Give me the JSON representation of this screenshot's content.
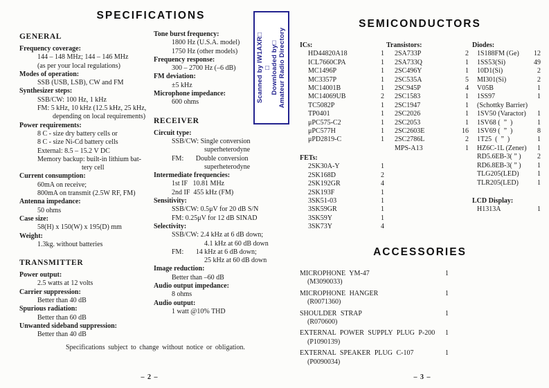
{
  "left_page": {
    "title": "SPECIFICATIONS",
    "page_number": "– 2 –",
    "footnote": "Specifications subject to change without notice or obligation.",
    "col1": [
      {
        "heading": "GENERAL",
        "blocks": [
          {
            "label": "Frequency coverage:",
            "lines": [
              {
                "t": "144 – 148 MHz; 144 – 146 MHz",
                "i": 1
              },
              {
                "t": "(as per your local regulations)",
                "i": 1
              }
            ]
          },
          {
            "label": "Modes of operation:",
            "lines": [
              {
                "t": "SSB (USB, LSB), CW and FM",
                "i": 1
              }
            ]
          },
          {
            "label": "Synthesizer steps:",
            "lines": [
              {
                "t": "SSB/CW: 100 Hz, 1 kHz",
                "i": 1
              },
              {
                "t": "FM: 5 kHz, 10 kHz (12.5 kHz, 25 kHz,",
                "i": 1
              },
              {
                "t": "depending on local requirements)",
                "i": 2
              }
            ]
          },
          {
            "label": "Power requirements:",
            "lines": [
              {
                "t": "8 C - size dry battery cells or",
                "i": 1
              },
              {
                "t": "8 C - size Ni-Cd battery cells",
                "i": 1
              },
              {
                "t": "External: 8.5 – 15.2 V DC",
                "i": 1
              },
              {
                "t": "Memory backup: built-in lithium bat-",
                "i": 1
              },
              {
                "t": "tery cell",
                "i": 3
              }
            ]
          },
          {
            "label": "Current consumption:",
            "lines": [
              {
                "t": "60mA on receive;",
                "i": 1
              },
              {
                "t": "800mA on transmit (2.5W RF, FM)",
                "i": 1
              }
            ]
          },
          {
            "label": "Antenna impedance:",
            "lines": [
              {
                "t": "50 ohms",
                "i": 1
              }
            ]
          },
          {
            "label": "Case size:",
            "lines": [
              {
                "t": "58(H) x 150(W) x 195(D) mm",
                "i": 1
              }
            ]
          },
          {
            "label": "Weight:",
            "lines": [
              {
                "t": "1.3kg. without batteries",
                "i": 1
              }
            ]
          }
        ]
      },
      {
        "heading": "TRANSMITTER",
        "blocks": [
          {
            "label": "Power output:",
            "lines": [
              {
                "t": "2.5 watts at 12 volts",
                "i": 1
              }
            ]
          },
          {
            "label": "Carrier suppression:",
            "lines": [
              {
                "t": "Better than 40 dB",
                "i": 1
              }
            ]
          },
          {
            "label": "Spurious radiation:",
            "lines": [
              {
                "t": "Better than 60 dB",
                "i": 1
              }
            ]
          },
          {
            "label": "Unwanted sideband suppression:",
            "lines": [
              {
                "t": "Better than 40 dB",
                "i": 1
              }
            ]
          }
        ]
      }
    ],
    "col2": [
      {
        "heading": "",
        "blocks": [
          {
            "label": "Tone burst frequency:",
            "lines": [
              {
                "t": "1800 Hz (U.S.A. model)",
                "i": 1
              },
              {
                "t": "1750 Hz (other models)",
                "i": 1
              }
            ]
          },
          {
            "label": "Frequency response:",
            "lines": [
              {
                "t": "300 – 2700 Hz (–6 dB)",
                "i": 1
              }
            ]
          },
          {
            "label": "FM deviation:",
            "lines": [
              {
                "t": "±5 kHz",
                "i": 1
              }
            ]
          },
          {
            "label": "Microphone impedance:",
            "lines": [
              {
                "t": "600 ohms",
                "i": 1
              }
            ]
          }
        ]
      },
      {
        "heading": "RECEIVER",
        "blocks": [
          {
            "label": "Circuit type:",
            "lines": [
              {
                "t": "SSB/CW: Single conversion",
                "i": 1
              },
              {
                "t": "superheterodyne",
                "i": 4
              },
              {
                "t": "FM:       Double conversion",
                "i": 1
              },
              {
                "t": "superheterodyne",
                "i": 4
              }
            ]
          },
          {
            "label": "Intermediate frequencies:",
            "lines": [
              {
                "t": "1st IF   10.81 MHz",
                "i": 1
              },
              {
                "t": "2nd IF  455 kHz (FM)",
                "i": 1
              }
            ]
          },
          {
            "label": "Sensitivity:",
            "lines": [
              {
                "t": "SSB/CW: 0.5μV for 20 dB S/N",
                "i": 1
              },
              {
                "t": "FM: 0.25μV for 12 dB SINAD",
                "i": 1
              }
            ]
          },
          {
            "label": "Selectivity:",
            "lines": [
              {
                "t": "SSB/CW: 2.4 kHz at 6 dB down;",
                "i": 1
              },
              {
                "t": "4.1 kHz at 60 dB down",
                "i": 4
              },
              {
                "t": "FM:       14 kHz at 6 dB down;",
                "i": 1
              },
              {
                "t": "25 kHz at 60 dB down",
                "i": 4
              }
            ]
          },
          {
            "label": "Image reduction:",
            "lines": [
              {
                "t": "Better than –60 dB",
                "i": 1
              }
            ]
          },
          {
            "label": "Audio output impedance:",
            "lines": [
              {
                "t": "8 ohms",
                "i": 1
              }
            ]
          },
          {
            "label": "Audio output:",
            "lines": [
              {
                "t": "1 watt @10% THD",
                "i": 1
              }
            ]
          }
        ]
      }
    ]
  },
  "stamp": {
    "border_color": "#23238f",
    "lines": [
      "Scanned by IW1AXR□",
      "□",
      "Downloaded by□",
      "Amateur Radio Directory"
    ]
  },
  "right_page": {
    "title": "SEMICONDUCTORS",
    "accessories_title": "ACCESSORIES",
    "page_number": "– 3 –",
    "col_ics": [
      {
        "heading": "ICs:",
        "parts": [
          {
            "n": "HD44820A18",
            "q": "1"
          },
          {
            "n": "ICL7660CPA",
            "q": "1"
          },
          {
            "n": "MC1496P",
            "q": "1"
          },
          {
            "n": "MC3357P",
            "q": "1"
          },
          {
            "n": "MC14001B",
            "q": "1"
          },
          {
            "n": "MC14069UB",
            "q": "2"
          },
          {
            "n": "TC5082P",
            "q": "1"
          },
          {
            "n": "TP0401",
            "q": "1"
          },
          {
            "n": "μPC575-C2",
            "q": "1"
          },
          {
            "n": "μPC577H",
            "q": "1"
          },
          {
            "n": "μPD2819-C",
            "q": "1"
          }
        ]
      },
      {
        "heading": "FETs:",
        "parts": [
          {
            "n": "2SK30A-Y",
            "q": "1"
          },
          {
            "n": "2SK168D",
            "q": "2"
          },
          {
            "n": "2SK192GR",
            "q": "4"
          },
          {
            "n": "2SK193F",
            "q": "1"
          },
          {
            "n": "3SK51-03",
            "q": "1"
          },
          {
            "n": "3SK59GR",
            "q": "1"
          },
          {
            "n": "3SK59Y",
            "q": "1"
          },
          {
            "n": "3SK73Y",
            "q": "4"
          }
        ]
      }
    ],
    "col_transistors": [
      {
        "heading": "Transistors:",
        "parts": [
          {
            "n": "2SA733P",
            "q": "2"
          },
          {
            "n": "2SA733Q",
            "q": "1"
          },
          {
            "n": "2SC496Y",
            "q": "1"
          },
          {
            "n": "2SC535A",
            "q": "5"
          },
          {
            "n": "2SC945P",
            "q": "4"
          },
          {
            "n": "2SC1583",
            "q": "1"
          },
          {
            "n": "2SC1947",
            "q": "1"
          },
          {
            "n": "2SC2026",
            "q": "1"
          },
          {
            "n": "2SC2053",
            "q": "1"
          },
          {
            "n": "2SC2603E",
            "q": "16"
          },
          {
            "n": "2SC2786L",
            "q": "2"
          },
          {
            "n": "MPS-A13",
            "q": "1"
          }
        ]
      }
    ],
    "col_diodes": [
      {
        "heading": "Diodes:",
        "parts": [
          {
            "n": "1S188FM (Ge)",
            "q": "12"
          },
          {
            "n": "1SS53(Si)",
            "q": "49"
          },
          {
            "n": "10D1(Si)",
            "q": "2"
          },
          {
            "n": "MI301(Si)",
            "q": "2"
          },
          {
            "n": "V05B",
            "q": "1"
          },
          {
            "n": "1SS97",
            "q": "1"
          },
          {
            "n": "(Schottky Barrier)",
            "q": ""
          },
          {
            "n": "1SV50 (Varactor)",
            "q": "1"
          },
          {
            "n": "1SV68 (  ”  )",
            "q": "1"
          },
          {
            "n": "1SV69 (  ”  )",
            "q": "8"
          },
          {
            "n": "1T25  (  ”  )",
            "q": "1"
          },
          {
            "n": "HZ6C-1L (Zener)",
            "q": "1"
          },
          {
            "n": "RD5.6EB-3( ” )",
            "q": "2"
          },
          {
            "n": "RD6.8EB-3( ” )",
            "q": "1"
          },
          {
            "n": "TLG205(LED)",
            "q": "1"
          },
          {
            "n": "TLR205(LED)",
            "q": "1"
          }
        ]
      },
      {
        "heading": "LCD Display:",
        "parts": [
          {
            "n": "H1313A",
            "q": "1"
          }
        ]
      }
    ],
    "accessories": [
      {
        "name": "MICROPHONE YM-47",
        "code": "(M3090033)",
        "qty": "1"
      },
      {
        "name": "MICROPHONE HANGER",
        "code": "(R0071360)",
        "qty": "1"
      },
      {
        "name": "SHOULDER STRAP",
        "code": "(R070600)",
        "qty": "1"
      },
      {
        "name": "EXTERNAL POWER SUPPLY PLUG P-200",
        "code": "(P1090139)",
        "qty": "1"
      },
      {
        "name": "EXTERNAL SPEAKER PLUG C-107",
        "code": "(P0090034)",
        "qty": "1"
      }
    ]
  }
}
